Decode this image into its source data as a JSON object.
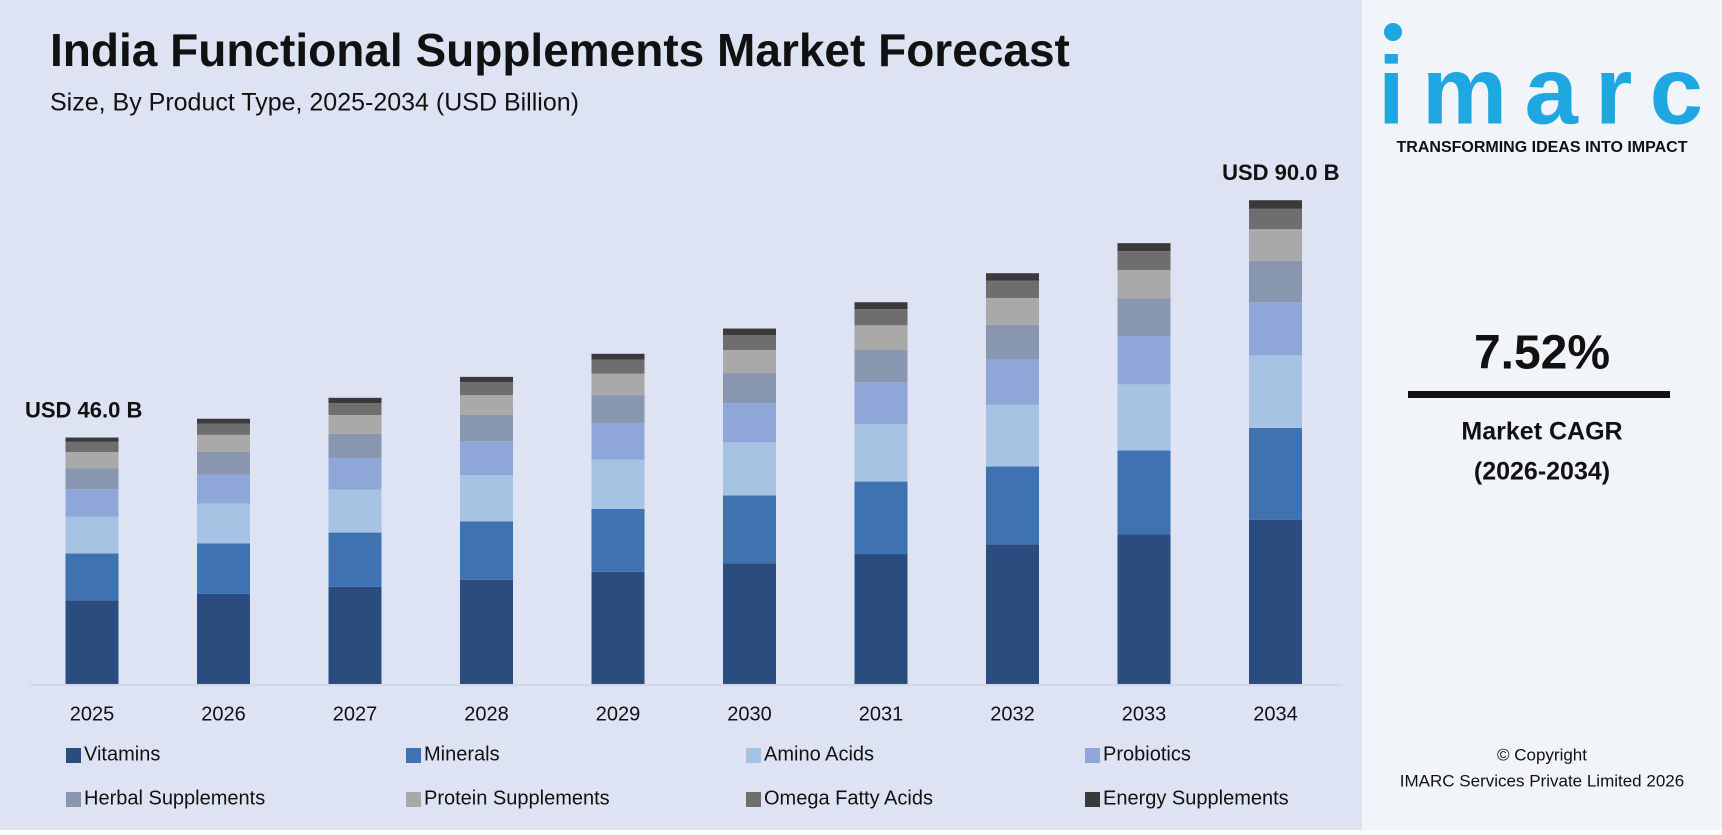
{
  "chart_data": {
    "type": "stacked_bar",
    "title": "India Functional Supplements Market Forecast",
    "subtitle": "Size, By Product Type, 2025-2034 (USD Billion)",
    "categories": [
      "2025",
      "2026",
      "2027",
      "2028",
      "2029",
      "2030",
      "2031",
      "2032",
      "2033",
      "2034"
    ],
    "series": [
      {
        "name": "Vitamins",
        "color": "#2b4c7e",
        "values": [
          15.6,
          16.8,
          18.1,
          19.4,
          20.9,
          22.5,
          24.2,
          26.0,
          27.9,
          30.6
        ]
      },
      {
        "name": "Minerals",
        "color": "#3f72b0",
        "values": [
          8.7,
          9.4,
          10.1,
          10.9,
          11.7,
          12.6,
          13.5,
          14.5,
          15.6,
          17.1
        ]
      },
      {
        "name": "Amino Acids",
        "color": "#a6c3e3",
        "values": [
          6.9,
          7.4,
          8.0,
          8.6,
          9.2,
          9.9,
          10.7,
          11.5,
          12.3,
          13.5
        ]
      },
      {
        "name": "Probiotics",
        "color": "#8fa6d9",
        "values": [
          5.1,
          5.4,
          5.9,
          6.3,
          6.8,
          7.3,
          7.8,
          8.4,
          9.0,
          9.9
        ]
      },
      {
        "name": "Herbal Supplements",
        "color": "#8896b0",
        "values": [
          3.9,
          4.2,
          4.5,
          4.9,
          5.2,
          5.6,
          6.0,
          6.5,
          7.0,
          7.7
        ]
      },
      {
        "name": "Protein Supplements",
        "color": "#a9a9a9",
        "values": [
          3.0,
          3.2,
          3.5,
          3.7,
          4.0,
          4.3,
          4.6,
          5.0,
          5.3,
          5.9
        ]
      },
      {
        "name": "Omega Fatty Acids",
        "color": "#6e6e6e",
        "values": [
          1.9,
          2.1,
          2.2,
          2.4,
          2.6,
          2.8,
          3.0,
          3.2,
          3.5,
          3.8
        ]
      },
      {
        "name": "Energy Supplements",
        "color": "#3a3a3a",
        "values": [
          0.8,
          0.9,
          1.0,
          1.0,
          1.1,
          1.2,
          1.3,
          1.4,
          1.5,
          1.6
        ]
      }
    ],
    "ylim": [
      0,
      92
    ],
    "annotations": [
      "USD 46.0 B",
      "USD 90.0 B"
    ]
  },
  "logo": {
    "text": "imarc",
    "tagline": "TRANSFORMING IDEAS INTO IMPACT"
  },
  "cagr": {
    "value": "7.52%",
    "label": "Market CAGR",
    "period": "(2026-2034)"
  },
  "copyright": [
    "© Copyright",
    "IMARC Services Private Limited 2026"
  ]
}
